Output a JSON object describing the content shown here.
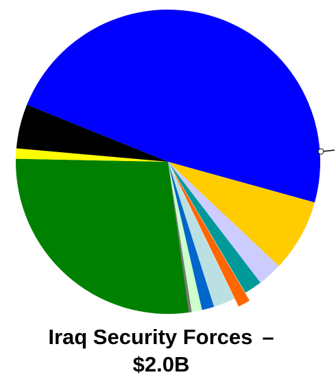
{
  "chart_data": {
    "type": "pie",
    "start_angle_deg": -158,
    "direction": "clockwise",
    "slices": [
      {
        "name": "",
        "value": 48.2,
        "color": "#0000FF"
      },
      {
        "name": "",
        "value": 7.7,
        "color": "#FFCC00"
      },
      {
        "name": "",
        "value": 2.6,
        "color": "#CCCCFF"
      },
      {
        "name": "",
        "value": 1.9,
        "color": "#009999"
      },
      {
        "name": "",
        "value": 1.3,
        "color": "#FF6600",
        "exploded": true
      },
      {
        "name": "",
        "value": 2.3,
        "color": "#BBE0E3"
      },
      {
        "name": "",
        "value": 1.3,
        "color": "#0066CC"
      },
      {
        "name": "",
        "value": 1.1,
        "color": "#CCFFCC"
      },
      {
        "name": "",
        "value": 0.3,
        "color": "#777777"
      },
      {
        "name": "",
        "value": 27.5,
        "color": "#008000"
      },
      {
        "name": "",
        "value": 1.1,
        "color": "#FFFF00"
      },
      {
        "name": "",
        "value": 4.7,
        "color": "#000000"
      }
    ]
  },
  "labels": {
    "caption_line1": "Iraq Security Forces",
    "caption_dash": "–",
    "caption_line2": "$2.0B"
  }
}
